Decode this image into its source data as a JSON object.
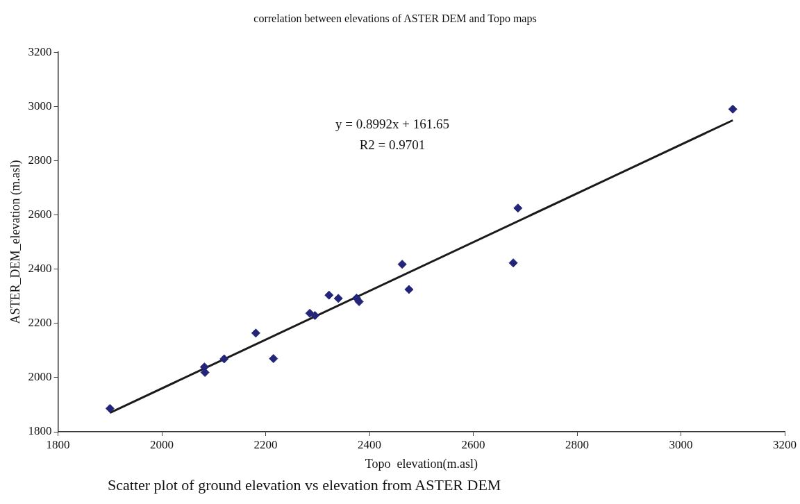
{
  "chart_data": {
    "type": "scatter",
    "title": "correlation between elevations of ASTER DEM and Topo maps",
    "xlabel": "Topo  elevation(m.asl)",
    "ylabel": "ASTER_DEM_elevation (m.asl)",
    "annotations": [
      "y = 0.8992x + 161.65",
      "R2 = 0.9701",
      "Scatter plot of ground elevation vs elevation from ASTER DEM"
    ],
    "series": [
      {
        "marker": "diamond",
        "color": "#22257a",
        "x": [
          1900,
          2082,
          2083,
          2120,
          2181,
          2215,
          2285,
          2295,
          2322,
          2340,
          2375,
          2380,
          2463,
          2476,
          2677,
          2686,
          3100
        ],
        "values": [
          1886,
          2039,
          2019,
          2069,
          2164,
          2070,
          2237,
          2229,
          2304,
          2292,
          2293,
          2280,
          2418,
          2325,
          2423,
          2625,
          2990
        ]
      },
      {
        "type": "line",
        "marker": "none",
        "color": "#1a1a1a",
        "x": [
          1900,
          3100
        ],
        "values": [
          1870,
          2949
        ]
      }
    ],
    "xlim": [
      1800,
      3200
    ],
    "xticks": [
      1800,
      2000,
      2200,
      2400,
      2600,
      2800,
      3000,
      3200
    ],
    "ylim": [
      1800,
      3200
    ],
    "yticks": [
      1800,
      2000,
      2200,
      2400,
      2600,
      2800,
      3000,
      3200
    ],
    "grid": false,
    "legend": false,
    "line_style": "solid"
  }
}
